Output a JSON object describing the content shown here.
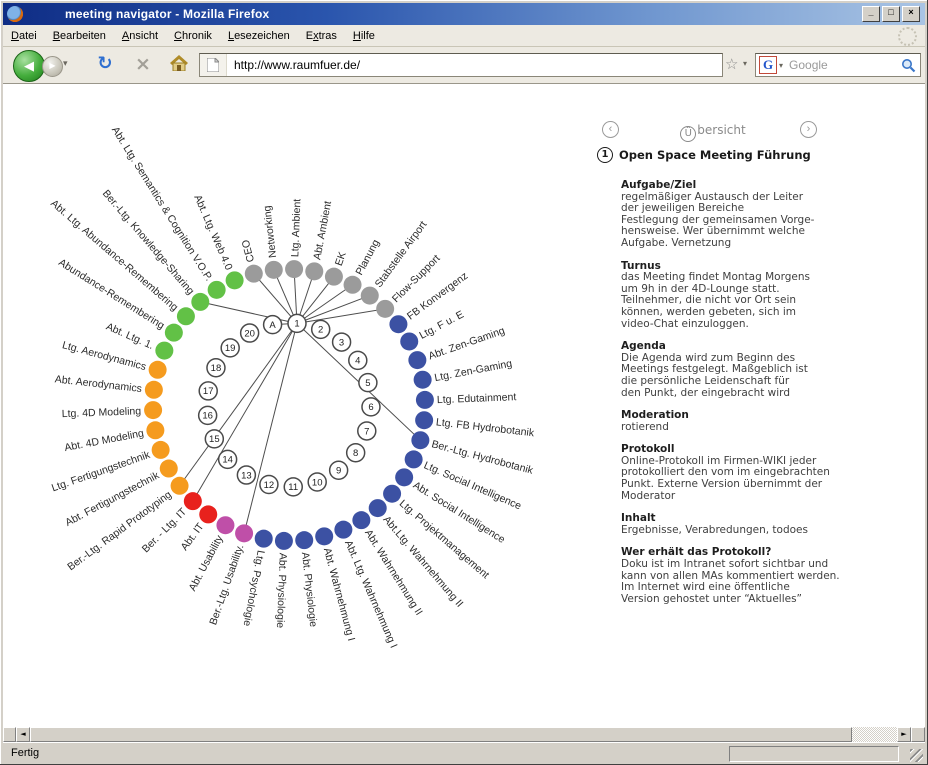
{
  "window": {
    "title": "meeting navigator - Mozilla Firefox",
    "controls": {
      "minimize": "_",
      "maximize": "□",
      "close": "×"
    }
  },
  "menu": {
    "items": [
      {
        "label": "Datei",
        "accessKeyIndex": 0
      },
      {
        "label": "Bearbeiten",
        "accessKeyIndex": 0
      },
      {
        "label": "Ansicht",
        "accessKeyIndex": 0
      },
      {
        "label": "Chronik",
        "accessKeyIndex": 0
      },
      {
        "label": "Lesezeichen",
        "accessKeyIndex": 0
      },
      {
        "label": "Extras",
        "accessKeyIndex": 1
      },
      {
        "label": "Hilfe",
        "accessKeyIndex": 0
      }
    ]
  },
  "toolbar": {
    "url": "http://www.raumfuer.de/",
    "search_placeholder": "Google"
  },
  "icons": {
    "back": "◀",
    "forward": "▶",
    "dropdown": "▾",
    "reload": "↻",
    "stop": "×",
    "star": "☆",
    "google_g": "G",
    "scroll_left": "◄",
    "scroll_right": "►",
    "nav_prev": "‹",
    "nav_next": "›"
  },
  "statusbar": {
    "text": "Fertig"
  },
  "panel": {
    "nav": {
      "title_circled": "Ü",
      "title_rest": "bersicht"
    },
    "heading": {
      "number": "1",
      "label": "Open Space Meeting Führung"
    },
    "sections": [
      {
        "title": "Aufgabe/Ziel",
        "lines": [
          "regelmäßiger Austausch der Leiter",
          "der jeweiligen Bereiche",
          "Festlegung der gemeinsamen Vorge-",
          "hensweise. Wer übernimmt welche",
          "Aufgabe. Vernetzung"
        ]
      },
      {
        "title": "Turnus",
        "lines": [
          "das Meeting findet Montag Morgens",
          "um 9h in der 4D-Lounge statt.",
          "Teilnehmer, die nicht vor Ort sein",
          "können, werden gebeten, sich im",
          "video-Chat einzuloggen."
        ]
      },
      {
        "title": "Agenda",
        "lines": [
          "Die Agenda wird zum Beginn des",
          "Meetings festgelegt. Maßgeblich ist",
          "die persönliche Leidenschaft für",
          "den Punkt, der eingebracht wird"
        ]
      },
      {
        "title": "Moderation",
        "lines": [
          "rotierend"
        ]
      },
      {
        "title": "Protokoll",
        "lines": [
          "Online-Protokoll im Firmen-WIKI jeder",
          "protokolliert den vom im eingebrachten",
          "Punkt. Externe Version übernimmt der",
          "Moderator"
        ]
      },
      {
        "title": "Inhalt",
        "lines": [
          "Ergebnisse, Verabredungen, todoes"
        ]
      },
      {
        "title": "Wer erhält das Protokoll?",
        "lines": [
          "Doku ist im Intranet sofort sichtbar und",
          "kann von allen MAs kommentiert werden.",
          "Im Internet wird eine öffentliche",
          "Version gehostet unter “Aktuelles”"
        ]
      }
    ]
  },
  "diagram": {
    "hub_label": "1",
    "extra_inner_node": "A",
    "inner_count": 20,
    "group_colors": {
      "gray": "#9B9B9B",
      "blue": "#3C51A3",
      "magenta": "#BF4FA8",
      "red": "#E8211D",
      "orange": "#F59B1E",
      "green": "#62C146"
    },
    "outer_nodes": [
      {
        "label": "CEO",
        "group": "gray"
      },
      {
        "label": "Networking",
        "group": "gray"
      },
      {
        "label": "Ltg. Ambient",
        "group": "gray"
      },
      {
        "label": "Abt. Ambient",
        "group": "gray"
      },
      {
        "label": "EK",
        "group": "gray"
      },
      {
        "label": "Planung",
        "group": "gray"
      },
      {
        "label": "Stabstelle Airport",
        "group": "gray"
      },
      {
        "label": "Flow-Support",
        "group": "gray"
      },
      {
        "label": "FB Konvergenz",
        "group": "blue"
      },
      {
        "label": "Ltg. F u. E",
        "group": "blue"
      },
      {
        "label": "Abt. Zen-Gaming",
        "group": "blue"
      },
      {
        "label": "Ltg. Zen-Gaming",
        "group": "blue"
      },
      {
        "label": "Ltg. Edutainment",
        "group": "blue"
      },
      {
        "label": "Ltg. FB Hydrobotanik",
        "group": "blue"
      },
      {
        "label": "Ber.-Ltg. Hydrobotanik",
        "group": "blue"
      },
      {
        "label": "Ltg. Social Intelligence",
        "group": "blue"
      },
      {
        "label": "Abt. Social Intelligence",
        "group": "blue"
      },
      {
        "label": "Ltg. Projektmanagement",
        "group": "blue"
      },
      {
        "label": "Abt.Ltg. Wahrnehmung II",
        "group": "blue"
      },
      {
        "label": "Abt. Wahrnehmung II",
        "group": "blue"
      },
      {
        "label": "Abt. Ltg. Wahrnehmung I",
        "group": "blue"
      },
      {
        "label": "Abt. Wahrnehmung I",
        "group": "blue"
      },
      {
        "label": "Abt. Physiologie",
        "group": "blue"
      },
      {
        "label": "Abt. Physiologie",
        "group": "blue"
      },
      {
        "label": "Ltg. Psychologie",
        "group": "blue"
      },
      {
        "label": "Ber.-Ltg. Usability.",
        "group": "magenta"
      },
      {
        "label": "Abt. Usability",
        "group": "magenta"
      },
      {
        "label": "Abt. IT",
        "group": "red"
      },
      {
        "label": "Ber. - Ltg. IT",
        "group": "red"
      },
      {
        "label": "Ber.-Ltg. Rapid Prototyping",
        "group": "orange"
      },
      {
        "label": "Abt. Fertigungstechnik",
        "group": "orange"
      },
      {
        "label": "Ltg. Fertigungstechnik",
        "group": "orange"
      },
      {
        "label": "Abt. 4D Modeling",
        "group": "orange"
      },
      {
        "label": "Ltg. 4D Modeling",
        "group": "orange"
      },
      {
        "label": "Abt. Aerodynamics",
        "group": "orange"
      },
      {
        "label": "Ltg. Aerodynamics",
        "group": "orange"
      },
      {
        "label": "Abt. Ltg. 1.",
        "group": "green"
      },
      {
        "label": "Abundance-Remembering",
        "group": "green"
      },
      {
        "label": "Abt. Ltg. Abundance-Remembering",
        "group": "green"
      },
      {
        "label": "Ber.-Ltg. Knowledge-Sharing",
        "group": "green"
      },
      {
        "label": "Abt. Ltg. Semantics & Cognition V.O.P.",
        "group": "green"
      },
      {
        "label": "Abt. Ltg. Web 4.0",
        "group": "green"
      }
    ],
    "hub_connections": [
      0,
      1,
      2,
      3,
      4,
      5,
      6,
      7,
      14,
      25,
      28,
      29,
      39
    ],
    "hub_connects_extra_node": true
  }
}
